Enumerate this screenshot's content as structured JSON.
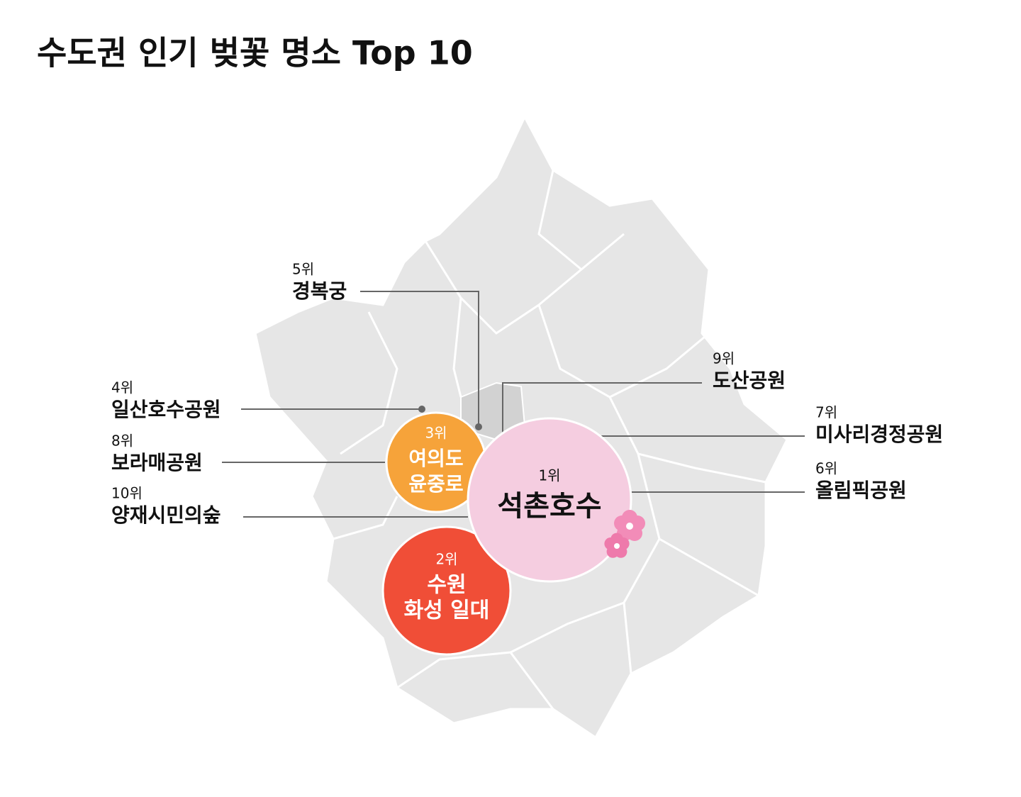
{
  "title": "수도권 인기 벚꽃 명소 Top 10",
  "spots": [
    {
      "rank": "1위",
      "name": [
        "석촌호수"
      ]
    },
    {
      "rank": "2위",
      "name": [
        "수원",
        "화성 일대"
      ]
    },
    {
      "rank": "3위",
      "name": [
        "여의도",
        "윤중로"
      ]
    },
    {
      "rank": "4위",
      "name": [
        "일산호수공원"
      ]
    },
    {
      "rank": "5위",
      "name": [
        "경복궁"
      ]
    },
    {
      "rank": "6위",
      "name": [
        "올림픽공원"
      ]
    },
    {
      "rank": "7위",
      "name": [
        "미사리경정공원"
      ]
    },
    {
      "rank": "8위",
      "name": [
        "보라매공원"
      ]
    },
    {
      "rank": "9위",
      "name": [
        "도산공원"
      ]
    },
    {
      "rank": "10위",
      "name": [
        "양재시민의숲"
      ]
    }
  ]
}
